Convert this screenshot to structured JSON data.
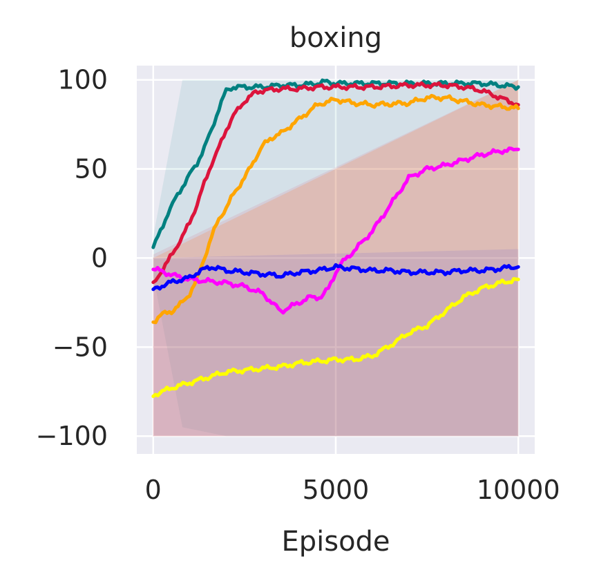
{
  "chart_data": {
    "type": "line",
    "title": "boxing",
    "xlabel": "Episode",
    "ylabel": "",
    "xlim": [
      -450,
      10450
    ],
    "ylim": [
      -110,
      108
    ],
    "xticks": [
      0,
      5000,
      10000
    ],
    "xtick_labels": [
      "0",
      "5000",
      "10000"
    ],
    "yticks": [
      -100,
      -50,
      0,
      50,
      100
    ],
    "ytick_labels": [
      "−100",
      "−50",
      "0",
      "50",
      "100"
    ],
    "grid": true,
    "legend": "none",
    "series": [
      {
        "color": "#008080",
        "band": [
          [
            0,
            -10,
            12
          ],
          [
            800,
            -95,
            100
          ],
          [
            2000,
            -100,
            100
          ],
          [
            10000,
            -100,
            100
          ]
        ],
        "x": [
          0,
          200,
          400,
          600,
          800,
          1000,
          1200,
          1400,
          1600,
          1800,
          2000,
          2200,
          2500,
          3000,
          3500,
          4000,
          4500,
          4700,
          5000,
          6000,
          7000,
          8000,
          8500,
          9000,
          9500,
          10000
        ],
        "y": [
          6,
          15,
          25,
          33,
          40,
          47,
          53,
          62,
          72,
          84,
          94,
          96,
          96,
          96,
          97,
          97,
          98,
          99,
          98,
          98,
          98,
          98,
          98,
          98,
          97,
          96
        ]
      },
      {
        "color": "#DC143C",
        "band": [
          [
            0,
            -100,
            2
          ],
          [
            10000,
            -100,
            100
          ]
        ],
        "x": [
          0,
          200,
          400,
          600,
          800,
          1000,
          1200,
          1400,
          1600,
          1800,
          2000,
          2200,
          2500,
          2800,
          3000,
          3500,
          4000,
          4500,
          5000,
          6000,
          7000,
          8000,
          8500,
          9000,
          9500,
          10000
        ],
        "y": [
          -15,
          -8,
          -2,
          5,
          12,
          20,
          30,
          42,
          53,
          62,
          72,
          80,
          88,
          93,
          94,
          95,
          95,
          96,
          96,
          96,
          97,
          97,
          96,
          94,
          90,
          86
        ]
      },
      {
        "color": "#FFA500",
        "band": [
          [
            0,
            -100,
            0
          ],
          [
            10000,
            -100,
            100
          ]
        ],
        "x": [
          0,
          200,
          500,
          800,
          1000,
          1200,
          1400,
          1600,
          1800,
          2000,
          2200,
          2500,
          2800,
          3000,
          3200,
          3500,
          4000,
          4500,
          5000,
          5500,
          6000,
          7000,
          7500,
          8000,
          9000,
          9500,
          10000
        ],
        "y": [
          -36,
          -32,
          -30,
          -25,
          -20,
          -12,
          0,
          12,
          22,
          28,
          36,
          45,
          56,
          63,
          67,
          70,
          78,
          86,
          89,
          87,
          86,
          87,
          90,
          90,
          86,
          85,
          84
        ]
      },
      {
        "color": "#FF00FF",
        "band": [
          [
            0,
            -100,
            0
          ],
          [
            10000,
            -100,
            100
          ]
        ],
        "x": [
          0,
          300,
          600,
          1000,
          1500,
          2000,
          2500,
          3000,
          3300,
          3500,
          3800,
          4000,
          4300,
          4600,
          4800,
          5000,
          5200,
          5500,
          6000,
          6500,
          7000,
          7500,
          8000,
          8500,
          9000,
          9500,
          10000
        ],
        "y": [
          -6,
          -8,
          -10,
          -12,
          -13,
          -14,
          -16,
          -20,
          -26,
          -30,
          -27,
          -25,
          -22,
          -22,
          -17,
          -8,
          -2,
          4,
          15,
          30,
          45,
          50,
          52,
          55,
          58,
          60,
          61
        ]
      },
      {
        "color": "#0000FF",
        "band": [
          [
            0,
            -100,
            0
          ],
          [
            10000,
            -100,
            5
          ]
        ],
        "x": [
          0,
          300,
          600,
          1000,
          1300,
          1600,
          2000,
          2500,
          3000,
          3500,
          4000,
          4500,
          5000,
          5500,
          6000,
          6500,
          7000,
          7500,
          8000,
          8500,
          9000,
          9500,
          9800,
          10000
        ],
        "y": [
          -18,
          -15,
          -13,
          -11,
          -7,
          -5,
          -7,
          -8,
          -9,
          -10,
          -8,
          -7,
          -5,
          -6,
          -7,
          -7,
          -8,
          -8,
          -8,
          -7,
          -7,
          -6,
          -5,
          -5
        ]
      },
      {
        "color": "#FFFF00",
        "band": [
          [
            0,
            -100,
            0
          ],
          [
            10000,
            -100,
            100
          ]
        ],
        "x": [
          0,
          500,
          1000,
          1500,
          2000,
          2500,
          3000,
          3500,
          4000,
          4500,
          5000,
          5500,
          6000,
          6500,
          7000,
          7500,
          8000,
          8500,
          9000,
          9500,
          10000
        ],
        "y": [
          -77,
          -73,
          -70,
          -67,
          -64,
          -63,
          -62,
          -61,
          -59,
          -58,
          -57,
          -57,
          -55,
          -49,
          -42,
          -38,
          -30,
          -22,
          -17,
          -14,
          -12
        ]
      }
    ]
  }
}
